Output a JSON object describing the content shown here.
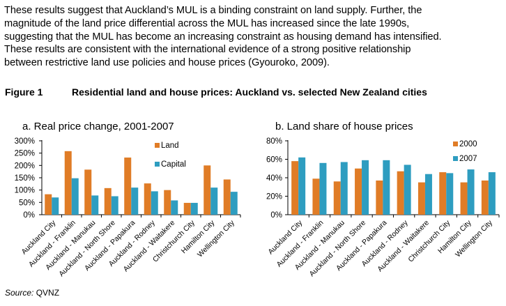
{
  "paragraph": {
    "lines": [
      "These results suggest that Auckland’s MUL is a binding constraint on land supply. Further, the",
      "magnitude of the land price differential across the MUL has increased since the late 1990s,",
      "suggesting that the MUL has become an increasing constraint as housing demand has intensified.",
      "These results are consistent with the international evidence of a strong positive relationship",
      "between restrictive land use policies and house prices (Gyouroko, 2009)."
    ]
  },
  "figure": {
    "label": "Figure 1",
    "title": "Residential land and house prices: Auckland vs. selected New Zealand cities"
  },
  "source": {
    "label": "Source:",
    "value": "QVNZ"
  },
  "colors": {
    "series1": "#E07C26",
    "series2": "#2E9DC0"
  },
  "chart_data": [
    {
      "type": "bar",
      "title": "a.  Real price change, 2001-2007",
      "categories": [
        "Auckland  City",
        "Auckland - Franklin",
        "Auckland - Manukau",
        "Auckland - North Shore",
        "Auckland - Papakura",
        "Auckland - Rodney",
        "Auckland - Waitakere",
        "Christchurch City",
        "Hamilton City",
        "Wellington City"
      ],
      "series": [
        {
          "name": "Land",
          "values": [
            83,
            258,
            183,
            108,
            232,
            127,
            100,
            48,
            200,
            143
          ]
        },
        {
          "name": "Capital",
          "values": [
            70,
            148,
            78,
            75,
            110,
            95,
            58,
            48,
            110,
            93
          ]
        }
      ],
      "ylim": [
        0,
        300
      ],
      "yticks": [
        "0%",
        "50%",
        "100%",
        "150%",
        "200%",
        "250%",
        "300%"
      ],
      "legend": "top-right"
    },
    {
      "type": "bar",
      "title": "b.  Land share of house prices",
      "categories": [
        "Auckland  City",
        "Auckland - Franklin",
        "Auckland - Manukau",
        "Auckland - North Shore",
        "Auckland - Papakura",
        "Auckland - Rodney",
        "Auckland - Waitakere",
        "Christchurch City",
        "Hamilton City",
        "Wellington City"
      ],
      "series": [
        {
          "name": "2000",
          "values": [
            58,
            39,
            36,
            50,
            37,
            47,
            35,
            46,
            35,
            37
          ]
        },
        {
          "name": "2007",
          "values": [
            62,
            56,
            57,
            59,
            59,
            54,
            44,
            45,
            49,
            46
          ]
        }
      ],
      "ylim": [
        0,
        80
      ],
      "yticks": [
        "0%",
        "20%",
        "40%",
        "60%",
        "80%"
      ],
      "legend": "top-right"
    }
  ]
}
